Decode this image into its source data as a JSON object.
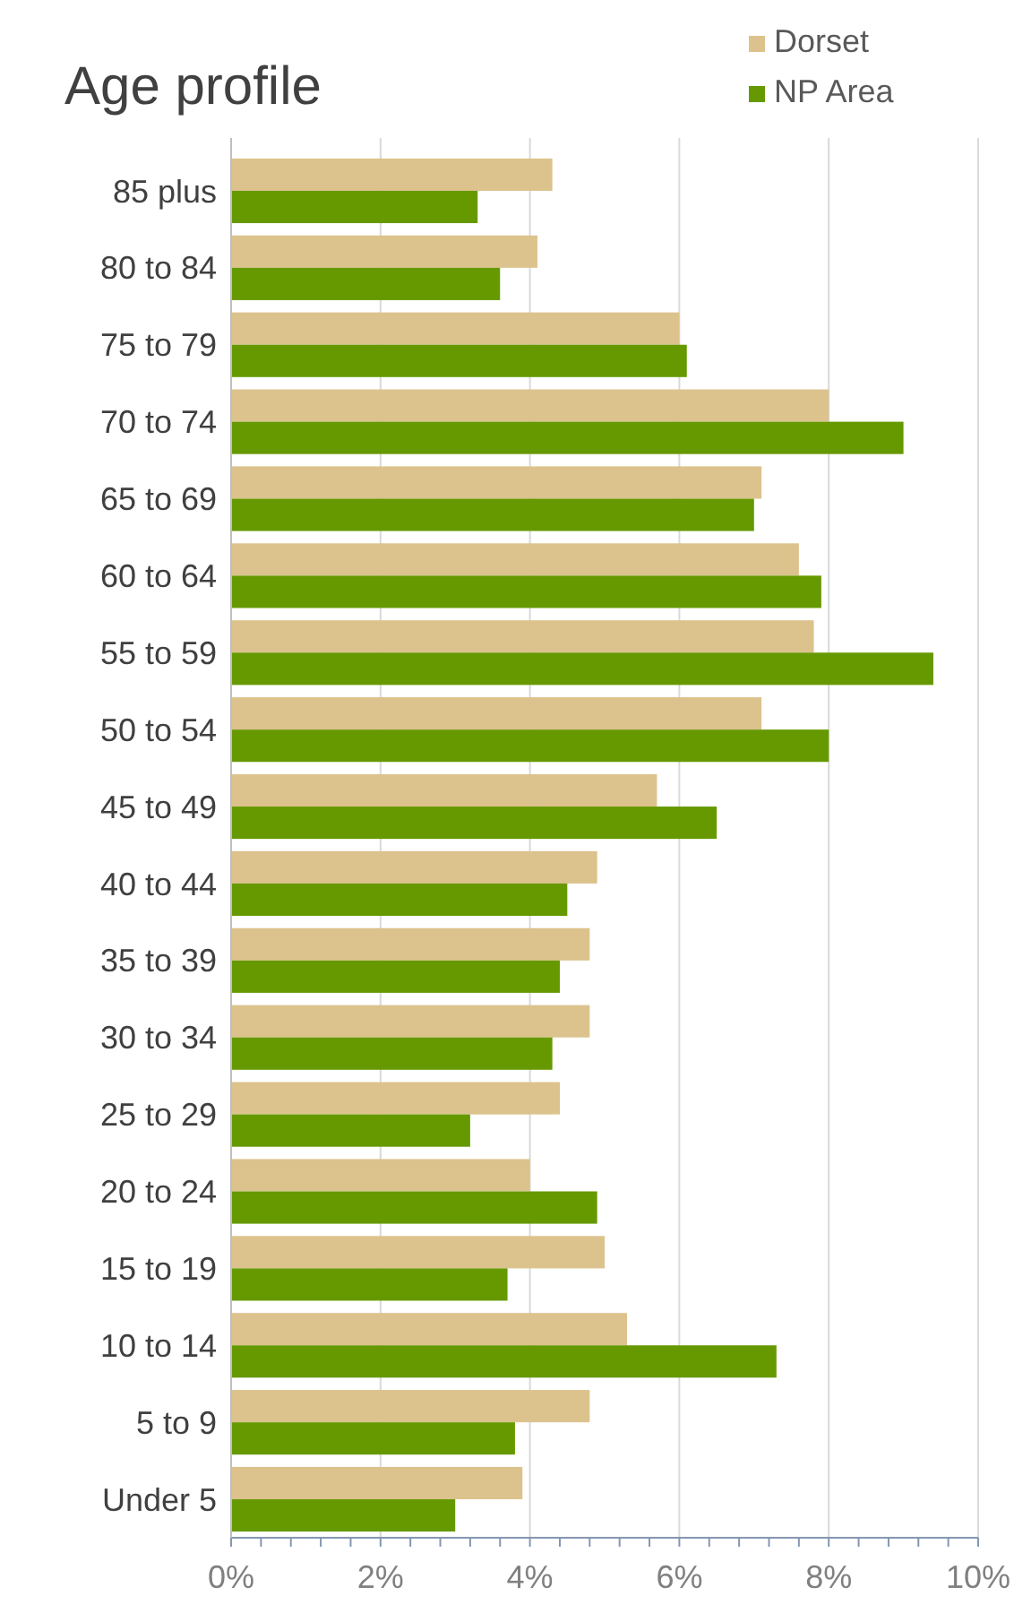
{
  "chart_data": {
    "type": "bar",
    "orientation": "horizontal",
    "title": "Age profile",
    "categories": [
      "85 plus",
      "80 to 84",
      "75 to 79",
      "70 to 74",
      "65 to 69",
      "60 to 64",
      "55 to 59",
      "50 to 54",
      "45 to 49",
      "40 to 44",
      "35 to 39",
      "30 to 34",
      "25 to 29",
      "20 to 24",
      "15 to 19",
      "10 to 14",
      "5 to 9",
      "Under 5"
    ],
    "series": [
      {
        "name": "Dorset",
        "color": "#dcc28c",
        "values": [
          4.3,
          4.1,
          6.0,
          8.0,
          7.1,
          7.6,
          7.8,
          7.1,
          5.7,
          4.9,
          4.8,
          4.8,
          4.4,
          4.0,
          5.0,
          5.3,
          4.8,
          3.9
        ]
      },
      {
        "name": "NP Area",
        "color": "#669900",
        "values": [
          3.3,
          3.6,
          6.1,
          9.0,
          7.0,
          7.9,
          9.4,
          8.0,
          6.5,
          4.5,
          4.4,
          4.3,
          3.2,
          4.9,
          3.7,
          7.3,
          3.8,
          3.0
        ]
      }
    ],
    "xlim": [
      0,
      10
    ],
    "xticks": [
      {
        "value": 0,
        "label": "0%"
      },
      {
        "value": 0.4,
        "label": null
      },
      {
        "value": 0.8,
        "label": null
      },
      {
        "value": 1.2,
        "label": null
      },
      {
        "value": 1.6,
        "label": null
      },
      {
        "value": 2,
        "label": "2%"
      },
      {
        "value": 2.4,
        "label": null
      },
      {
        "value": 2.8,
        "label": null
      },
      {
        "value": 3.2,
        "label": null
      },
      {
        "value": 3.6,
        "label": null
      },
      {
        "value": 4,
        "label": "4%"
      },
      {
        "value": 4.4,
        "label": null
      },
      {
        "value": 4.8,
        "label": null
      },
      {
        "value": 5.2,
        "label": null
      },
      {
        "value": 5.6,
        "label": null
      },
      {
        "value": 6,
        "label": "6%"
      },
      {
        "value": 6.4,
        "label": null
      },
      {
        "value": 6.8,
        "label": null
      },
      {
        "value": 7.2,
        "label": null
      },
      {
        "value": 7.6,
        "label": null
      },
      {
        "value": 8,
        "label": "8%"
      },
      {
        "value": 8.4,
        "label": null
      },
      {
        "value": 8.8,
        "label": null
      },
      {
        "value": 9.2,
        "label": null
      },
      {
        "value": 9.6,
        "label": null
      },
      {
        "value": 10,
        "label": "10%"
      }
    ],
    "grid": "x",
    "legend": "top right"
  }
}
